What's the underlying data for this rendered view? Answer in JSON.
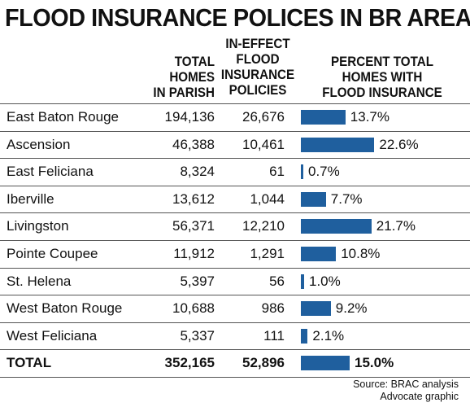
{
  "title": "FLOOD INSURANCE POLICES IN BR AREA",
  "headers": {
    "total_homes": "TOTAL\nHOMES\nIN PARISH",
    "policies": "IN-EFFECT\nFLOOD\nINSURANCE\nPOLICIES",
    "percent": "PERCENT TOTAL\nHOMES WITH\nFLOOD INSURANCE"
  },
  "chart_data": {
    "type": "table",
    "columns": [
      "TOTAL HOMES IN PARISH",
      "IN-EFFECT FLOOD INSURANCE POLICIES",
      "PERCENT TOTAL HOMES WITH FLOOD INSURANCE"
    ],
    "rows": [
      {
        "name": "East Baton Rouge",
        "homes": "194,136",
        "policies": "26,676",
        "percent_label": "13.7%",
        "percent": 13.7
      },
      {
        "name": "Ascension",
        "homes": "46,388",
        "policies": "10,461",
        "percent_label": "22.6%",
        "percent": 22.6
      },
      {
        "name": "East Feliciana",
        "homes": "8,324",
        "policies": "61",
        "percent_label": "0.7%",
        "percent": 0.7
      },
      {
        "name": "Iberville",
        "homes": "13,612",
        "policies": "1,044",
        "percent_label": "7.7%",
        "percent": 7.7
      },
      {
        "name": "Livingston",
        "homes": "56,371",
        "policies": "12,210",
        "percent_label": "21.7%",
        "percent": 21.7
      },
      {
        "name": "Pointe Coupee",
        "homes": "11,912",
        "policies": "1,291",
        "percent_label": "10.8%",
        "percent": 10.8
      },
      {
        "name": "St. Helena",
        "homes": "5,397",
        "policies": "56",
        "percent_label": "1.0%",
        "percent": 1.0
      },
      {
        "name": "West Baton Rouge",
        "homes": "10,688",
        "policies": "986",
        "percent_label": "9.2%",
        "percent": 9.2
      },
      {
        "name": "West Feliciana",
        "homes": "5,337",
        "policies": "111",
        "percent_label": "2.1%",
        "percent": 2.1
      }
    ],
    "total": {
      "name": "TOTAL",
      "homes": "352,165",
      "policies": "52,896",
      "percent_label": "15.0%",
      "percent": 15.0
    },
    "bar_color": "#1f5f9e"
  },
  "source": "Source: BRAC analysis\nAdvocate graphic"
}
